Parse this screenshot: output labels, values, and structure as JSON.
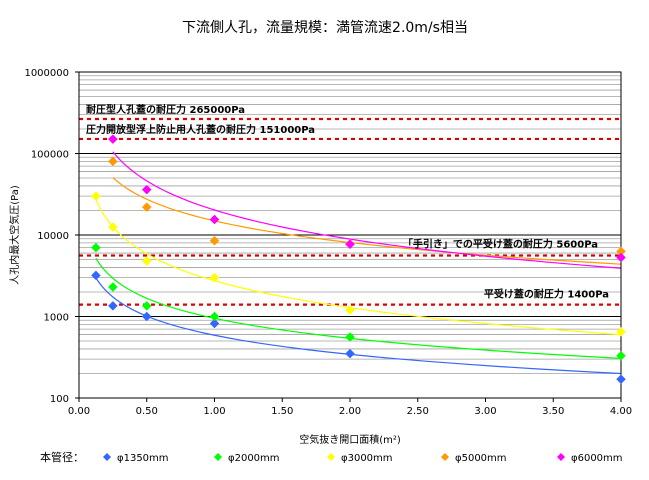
{
  "chart_data": {
    "type": "scatter",
    "title": "下流側人孔，流量規模：満管流速2.0m/s相当",
    "xlabel": "空気抜き開口面積(m²)",
    "ylabel": "人孔内最大空気圧(Pa)",
    "y_scale": "log",
    "xlim": [
      0,
      4
    ],
    "ylim": [
      100,
      1000000
    ],
    "x_ticks": [
      "0.00",
      "0.50",
      "1.00",
      "1.50",
      "2.00",
      "2.50",
      "3.00",
      "3.50",
      "4.00"
    ],
    "y_ticks": [
      "100",
      "1000",
      "10000",
      "100000",
      "1000000"
    ],
    "grid": true,
    "legend_title": "本管径：",
    "legend_position": "bottom",
    "reference_lines": [
      {
        "label": "耐圧型人孔蓋の耐圧力  265000Pa",
        "value": 265000
      },
      {
        "label": "圧力開放型浮上防止用人孔蓋の耐圧力  151000Pa",
        "value": 151000
      },
      {
        "label": "「手引き」での平受け蓋の耐圧力  5600Pa",
        "value": 5600
      },
      {
        "label": "平受け蓋の耐圧力  1400Pa",
        "value": 1400
      }
    ],
    "series": [
      {
        "name": "φ1350mm",
        "color": "#3366ff",
        "x": [
          0.125,
          0.25,
          0.5,
          1.0,
          2.0,
          4.0
        ],
        "y": [
          3200,
          1350,
          1000,
          820,
          350,
          170
        ]
      },
      {
        "name": "φ2000mm",
        "color": "#00ff00",
        "x": [
          0.125,
          0.25,
          0.5,
          1.0,
          2.0,
          4.0
        ],
        "y": [
          7000,
          2300,
          1350,
          1000,
          560,
          330
        ]
      },
      {
        "name": "φ3000mm",
        "color": "#ffff00",
        "x": [
          0.125,
          0.25,
          0.5,
          1.0,
          2.0,
          4.0
        ],
        "y": [
          30000,
          12500,
          4800,
          3000,
          1200,
          650
        ]
      },
      {
        "name": "φ5000mm",
        "color": "#ff9900",
        "x": [
          0.25,
          0.5,
          1.0,
          2.0,
          4.0
        ],
        "y": [
          80000,
          22000,
          8500,
          7800,
          6300
        ]
      },
      {
        "name": "φ6000mm",
        "color": "#ff00ff",
        "x": [
          0.25,
          0.5,
          1.0,
          2.0,
          4.0
        ],
        "y": [
          150000,
          36000,
          15500,
          7700,
          5300
        ]
      }
    ]
  }
}
